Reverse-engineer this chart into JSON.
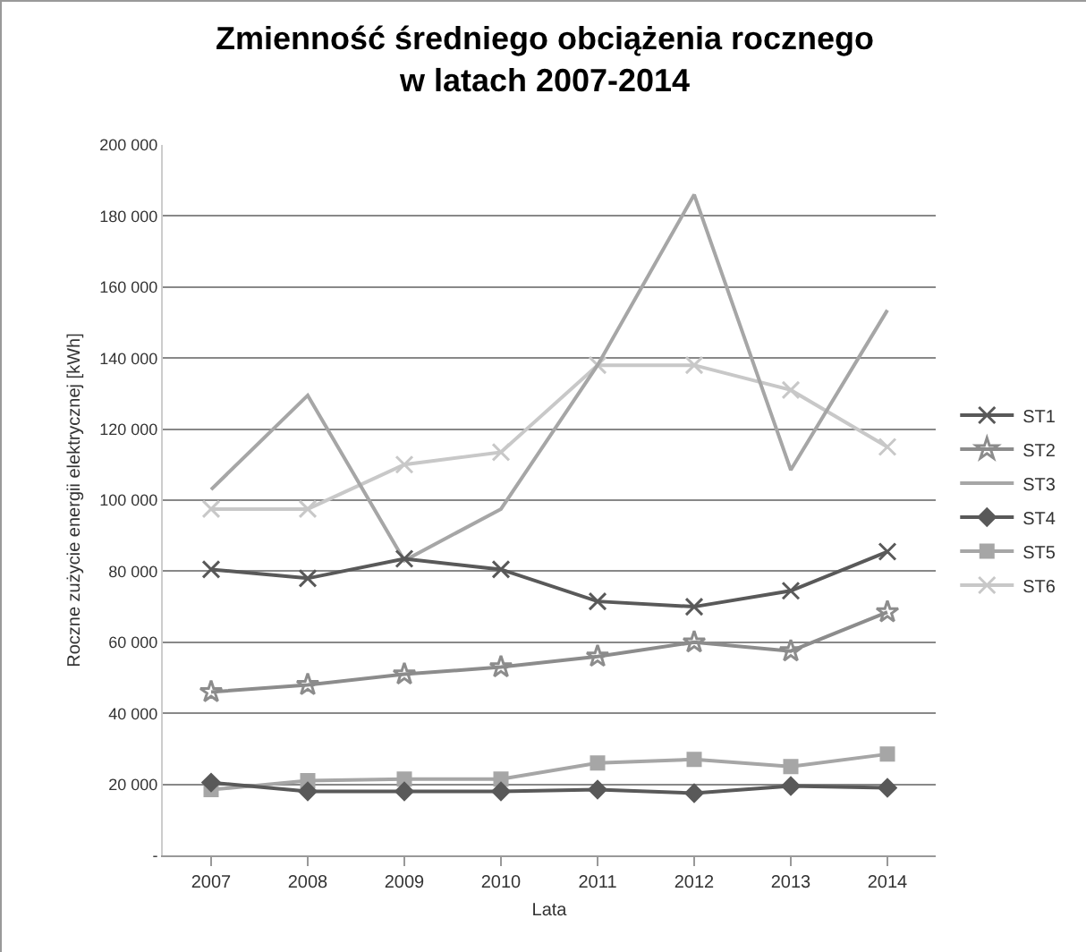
{
  "chart_data": {
    "type": "line",
    "title": "Zmienność średniego obciążenia rocznego\nw latach 2007-2014",
    "xlabel": "Lata",
    "ylabel": "Roczne zużycie energii elektrycznej [kWh]",
    "categories": [
      "2007",
      "2008",
      "2009",
      "2010",
      "2011",
      "2012",
      "2013",
      "2014"
    ],
    "series": [
      {
        "name": "ST1",
        "color": "#595959",
        "marker": "cross",
        "values": [
          80500,
          78000,
          83500,
          80500,
          71500,
          70000,
          74500,
          85500
        ]
      },
      {
        "name": "ST2",
        "color": "#8c8c8c",
        "marker": "star",
        "values": [
          46000,
          48000,
          51000,
          53000,
          56000,
          60000,
          57500,
          68500
        ]
      },
      {
        "name": "ST3",
        "color": "#a6a6a6",
        "marker": "none",
        "values": [
          103000,
          129500,
          83000,
          97500,
          138000,
          186000,
          108500,
          153500
        ]
      },
      {
        "name": "ST4",
        "color": "#595959",
        "marker": "diamond",
        "values": [
          20500,
          18000,
          18000,
          18000,
          18500,
          17500,
          19500,
          19000
        ]
      },
      {
        "name": "ST5",
        "color": "#a6a6a6",
        "marker": "square",
        "values": [
          18500,
          21000,
          21500,
          21500,
          26000,
          27000,
          25000,
          28500
        ]
      },
      {
        "name": "ST6",
        "color": "#c8c8c8",
        "marker": "cross",
        "values": [
          97500,
          97500,
          110000,
          113500,
          138000,
          138000,
          131000,
          115000
        ]
      }
    ],
    "ylim": [
      0,
      200000
    ],
    "yticks": [
      {
        "value": 0,
        "label": "-"
      },
      {
        "value": 20000,
        "label": "20 000"
      },
      {
        "value": 40000,
        "label": "40 000"
      },
      {
        "value": 60000,
        "label": "60 000"
      },
      {
        "value": 80000,
        "label": "80 000"
      },
      {
        "value": 100000,
        "label": "100 000"
      },
      {
        "value": 120000,
        "label": "120 000"
      },
      {
        "value": 140000,
        "label": "140 000"
      },
      {
        "value": 160000,
        "label": "160 000"
      },
      {
        "value": 180000,
        "label": "180 000"
      },
      {
        "value": 200000,
        "label": "200 000"
      }
    ],
    "grid": "y",
    "legend": "right",
    "line_style": "solid"
  }
}
